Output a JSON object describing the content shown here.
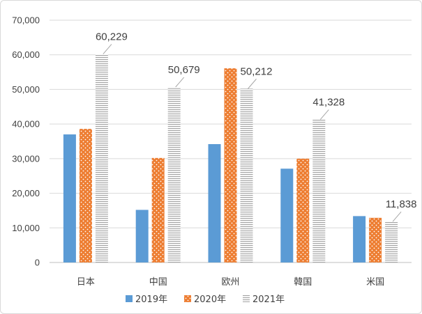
{
  "chart_data": {
    "type": "bar",
    "categories": [
      "日本",
      "中国",
      "欧州",
      "韓国",
      "米国"
    ],
    "series": [
      {
        "name": "2019年",
        "values": [
          37000,
          15200,
          34200,
          27100,
          13400
        ],
        "color": "#5b9bd5",
        "pattern": "solid"
      },
      {
        "name": "2020年",
        "values": [
          38600,
          30200,
          56100,
          30000,
          12900
        ],
        "color": "#ed7d31",
        "pattern": "dots"
      },
      {
        "name": "2021年",
        "values": [
          60229,
          50679,
          50212,
          41328,
          11838
        ],
        "color": "#a5a5a5",
        "pattern": "horizontal-lines"
      }
    ],
    "data_labels": [
      {
        "series": "2021年",
        "category": "日本",
        "text": "60,229"
      },
      {
        "series": "2021年",
        "category": "中国",
        "text": "50,679"
      },
      {
        "series": "2021年",
        "category": "欧州",
        "text": "50,212"
      },
      {
        "series": "2021年",
        "category": "韓国",
        "text": "41,328"
      },
      {
        "series": "2021年",
        "category": "米国",
        "text": "11,838"
      }
    ],
    "y_ticks": [
      "0",
      "10,000",
      "20,000",
      "30,000",
      "40,000",
      "50,000",
      "60,000",
      "70,000"
    ],
    "ylim": [
      0,
      70000
    ],
    "grid": true,
    "legend_position": "bottom"
  }
}
